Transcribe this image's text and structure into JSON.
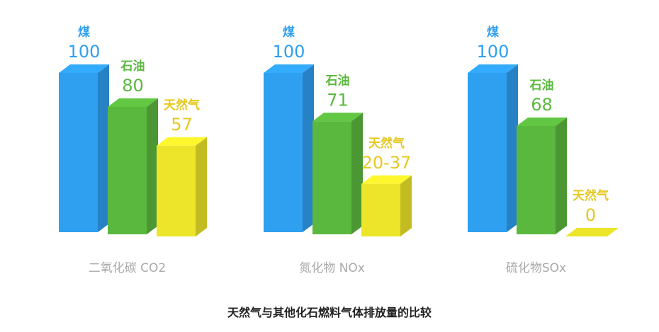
{
  "footer_title": "天然气与其他化石燃料气体排放量的比较",
  "colors": {
    "coal": "#2f9ff0",
    "oil": "#5bb83e",
    "gas": "#ece52a",
    "category_label": "#a9a9a9",
    "gas_label": "#e6c81f"
  },
  "chart_data": [
    {
      "type": "bar",
      "category": "二氧化碳 CO2",
      "series": [
        {
          "name": "煤",
          "value": 100,
          "label": "100"
        },
        {
          "name": "石油",
          "value": 80,
          "label": "80"
        },
        {
          "name": "天然气",
          "value": 57,
          "label": "57"
        }
      ],
      "ylim": [
        0,
        100
      ],
      "bar_style": "3d"
    },
    {
      "type": "bar",
      "category": "氮化物 NOx",
      "series": [
        {
          "name": "煤",
          "value": 100,
          "label": "100"
        },
        {
          "name": "石油",
          "value": 71,
          "label": "71"
        },
        {
          "name": "天然气",
          "value": 33,
          "label": "20-37"
        }
      ],
      "ylim": [
        0,
        100
      ],
      "bar_style": "3d"
    },
    {
      "type": "bar",
      "category": "硫化物SOx",
      "series": [
        {
          "name": "煤",
          "value": 100,
          "label": "100"
        },
        {
          "name": "石油",
          "value": 68,
          "label": "68"
        },
        {
          "name": "天然气",
          "value": 0,
          "label": "0"
        }
      ],
      "ylim": [
        0,
        100
      ],
      "bar_style": "3d"
    }
  ]
}
